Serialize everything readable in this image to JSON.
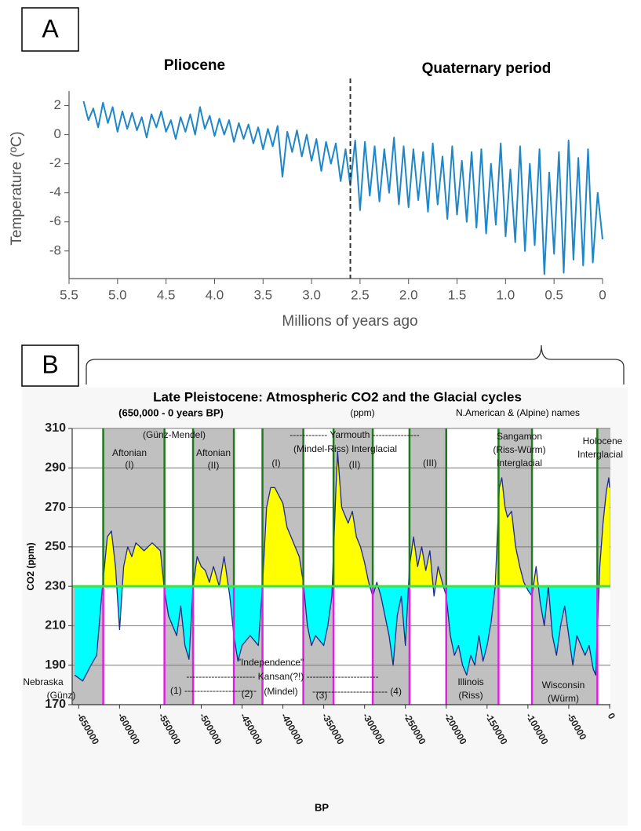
{
  "chart_data": [
    {
      "type": "line",
      "panel": "A",
      "period_labels": [
        "Pliocene",
        "Quaternary period"
      ],
      "xlabel": "Millions of years ago",
      "ylabel": "Temperature (ºC)",
      "color": "#1f86c8",
      "boundary": 2.6,
      "xlim": [
        5.5,
        0
      ],
      "ylim": [
        -9.9,
        3
      ],
      "xticks": [
        5.5,
        {
          "value": 5,
          "label": "5.0"
        },
        4.5,
        {
          "value": 4,
          "label": "4.0"
        },
        3.5,
        {
          "value": 3,
          "label": "3.0"
        },
        2.5,
        {
          "value": 2,
          "label": "2.0"
        },
        1.5,
        {
          "value": 1,
          "label": "1.0"
        },
        0.5,
        0
      ],
      "yticks": [
        2,
        0,
        -2,
        -4,
        -6,
        -8
      ],
      "x": [
        5.35,
        5.3,
        5.25,
        5.2,
        5.15,
        5.1,
        5.05,
        5,
        4.95,
        4.9,
        4.85,
        4.8,
        4.75,
        4.7,
        4.65,
        4.6,
        4.55,
        4.5,
        4.45,
        4.4,
        4.35,
        4.3,
        4.25,
        4.2,
        4.15,
        4.1,
        4.05,
        4,
        3.95,
        3.9,
        3.85,
        3.8,
        3.75,
        3.7,
        3.65,
        3.6,
        3.55,
        3.5,
        3.45,
        3.4,
        3.35,
        3.3,
        3.25,
        3.2,
        3.15,
        3.1,
        3.05,
        3,
        2.95,
        2.9,
        2.85,
        2.8,
        2.75,
        2.7,
        2.65,
        2.6,
        2.55,
        2.5,
        2.45,
        2.4,
        2.35,
        2.3,
        2.25,
        2.2,
        2.15,
        2.1,
        2.05,
        2,
        1.95,
        1.9,
        1.85,
        1.8,
        1.75,
        1.7,
        1.65,
        1.6,
        1.55,
        1.5,
        1.45,
        1.4,
        1.35,
        1.3,
        1.25,
        1.2,
        1.15,
        1.1,
        1.05,
        1,
        0.95,
        0.9,
        0.85,
        0.8,
        0.75,
        0.7,
        0.65,
        0.6,
        0.55,
        0.5,
        0.45,
        0.4,
        0.35,
        0.3,
        0.25,
        0.2,
        0.15,
        0.1,
        0.05,
        0
      ],
      "values": [
        2.3,
        1.0,
        1.8,
        0.5,
        2.2,
        0.8,
        1.9,
        0.2,
        1.6,
        0.4,
        1.5,
        0.3,
        1.2,
        -0.2,
        1.4,
        0.5,
        1.6,
        0.2,
        1.0,
        -0.3,
        1.2,
        0.2,
        1.4,
        0.0,
        1.9,
        0.4,
        1.3,
        -0.1,
        1.1,
        0.0,
        1.0,
        -0.5,
        0.8,
        -0.3,
        0.7,
        -0.6,
        0.5,
        -1.0,
        0.4,
        -0.8,
        0.6,
        -2.9,
        0.2,
        -1.2,
        0.3,
        -1.5,
        0.0,
        -1.8,
        -0.3,
        -2.5,
        -0.5,
        -2.0,
        -0.6,
        -3.2,
        -1.0,
        -3.5,
        -0.4,
        -5.2,
        -0.5,
        -4.2,
        -0.8,
        -4.6,
        -1.0,
        -4.0,
        -0.2,
        -4.8,
        -0.8,
        -5.0,
        -1.0,
        -4.5,
        -1.2,
        -5.3,
        -0.6,
        -4.8,
        -1.5,
        -5.8,
        -0.8,
        -5.5,
        -1.8,
        -6.0,
        -1.2,
        -6.4,
        -1.0,
        -6.8,
        -2.0,
        -6.2,
        -0.6,
        -7.0,
        -2.4,
        -7.4,
        -0.8,
        -8.0,
        -2.0,
        -7.6,
        -1.0,
        -9.6,
        -2.6,
        -8.2,
        -1.2,
        -9.5,
        -0.4,
        -8.6,
        -1.6,
        -9.0,
        -1.0,
        -8.8,
        -4.0,
        -7.2
      ]
    },
    {
      "type": "area",
      "panel": "B",
      "title": "Late Pleistocene: Atmospheric CO2 and the Glacial cycles",
      "subtitle": "(650,000 - 0 years BP)",
      "unit_note": "(ppm)",
      "names_note": "N.American & (Alpine) names",
      "xlabel": "BP",
      "ylabel": "CO2 (ppm)",
      "color": "#1c2a8a",
      "above_color": "#ffff00",
      "below_color": "#00ffff",
      "band_color": "#c0c0c0",
      "interglacial_line_color": "#1f7a1f",
      "glacial_line_color": "#e020e0",
      "baseline_color": "#44dd44",
      "baseline": 230,
      "boundaries": [
        -620000,
        -545000,
        -510000,
        -460000,
        -425000,
        -375000,
        -338000,
        -290000,
        -245000,
        -200000,
        -136000,
        -95000,
        -15000
      ],
      "xlim": [
        -658000,
        1000
      ],
      "ylim": [
        170,
        310
      ],
      "xticks": [
        -650000,
        -600000,
        -550000,
        -500000,
        -450000,
        -400000,
        -350000,
        -300000,
        -250000,
        -200000,
        -150000,
        -100000,
        -50000,
        0
      ],
      "yticks": [
        170,
        190,
        210,
        230,
        250,
        270,
        290,
        310
      ],
      "grid": true,
      "annotations": [
        "(Günz-Mendel)",
        "Aftonian",
        "(I)",
        "Aftonian",
        "(II)",
        "------------ Yarmouth ---------------",
        "(Mindel-Riss) Interglacial",
        "(I)",
        "(II)",
        "(III)",
        "Sangamon",
        "(Riss-Würm)",
        "Interglacial",
        "Holocene",
        "Interglacial",
        "\"Independence\"",
        "---------------------- Kansan(?!) -----------------------",
        "(1) -----------------------",
        "(2)",
        "(Mindel)",
        "(3)",
        "------------------------ (4)",
        "Nebraska",
        "(Günz)",
        "Illinois",
        "(Riss)",
        "Wisconsin",
        "(Würm)"
      ],
      "x": [
        -655000,
        -645000,
        -635000,
        -628000,
        -622000,
        -615000,
        -610000,
        -605000,
        -600000,
        -595000,
        -590000,
        -585000,
        -580000,
        -570000,
        -560000,
        -550000,
        -545000,
        -540000,
        -530000,
        -525000,
        -520000,
        -515000,
        -510000,
        -505000,
        -500000,
        -495000,
        -490000,
        -485000,
        -478000,
        -472000,
        -465000,
        -460000,
        -455000,
        -450000,
        -440000,
        -430000,
        -425000,
        -420000,
        -415000,
        -410000,
        -405000,
        -400000,
        -395000,
        -390000,
        -385000,
        -380000,
        -375000,
        -370000,
        -365000,
        -360000,
        -350000,
        -345000,
        -340000,
        -335000,
        -333000,
        -328000,
        -320000,
        -315000,
        -310000,
        -305000,
        -300000,
        -295000,
        -290000,
        -285000,
        -280000,
        -275000,
        -270000,
        -265000,
        -260000,
        -255000,
        -250000,
        -245000,
        -240000,
        -235000,
        -230000,
        -225000,
        -220000,
        -215000,
        -210000,
        -205000,
        -200000,
        -195000,
        -190000,
        -185000,
        -180000,
        -175000,
        -170000,
        -165000,
        -160000,
        -155000,
        -150000,
        -145000,
        -140000,
        -135000,
        -132000,
        -128000,
        -125000,
        -120000,
        -115000,
        -110000,
        -105000,
        -100000,
        -95000,
        -90000,
        -85000,
        -80000,
        -75000,
        -70000,
        -65000,
        -60000,
        -55000,
        -50000,
        -45000,
        -40000,
        -35000,
        -30000,
        -25000,
        -20000,
        -17000,
        -12000,
        -8000,
        -4000,
        -1000,
        0
      ],
      "values": [
        185,
        182,
        190,
        195,
        225,
        255,
        258,
        240,
        208,
        240,
        250,
        245,
        252,
        248,
        252,
        248,
        228,
        215,
        205,
        220,
        200,
        193,
        230,
        245,
        240,
        238,
        232,
        240,
        230,
        245,
        225,
        205,
        192,
        200,
        205,
        200,
        230,
        270,
        280,
        280,
        276,
        272,
        260,
        255,
        250,
        245,
        232,
        210,
        200,
        205,
        200,
        210,
        225,
        280,
        298,
        270,
        262,
        268,
        255,
        250,
        242,
        232,
        225,
        232,
        225,
        215,
        205,
        190,
        215,
        225,
        200,
        240,
        255,
        240,
        250,
        238,
        248,
        225,
        240,
        232,
        225,
        205,
        195,
        200,
        190,
        185,
        195,
        190,
        205,
        192,
        200,
        212,
        230,
        280,
        285,
        270,
        265,
        268,
        250,
        240,
        232,
        228,
        225,
        240,
        222,
        210,
        230,
        205,
        195,
        210,
        220,
        205,
        190,
        205,
        200,
        195,
        200,
        188,
        185,
        240,
        262,
        278,
        285,
        280
      ]
    }
  ]
}
